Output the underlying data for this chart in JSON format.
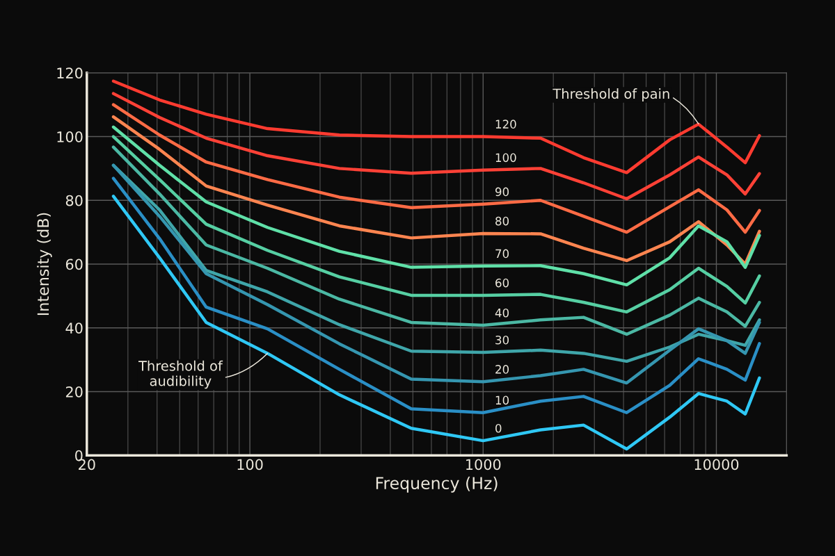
{
  "chart_data": {
    "type": "line",
    "xlabel": "Frequency (Hz)",
    "ylabel": "Intensity (dB)",
    "log": "x",
    "xlim": [
      20,
      20000
    ],
    "xticks": [
      20,
      100,
      1000,
      10000
    ],
    "ylim": [
      0,
      120
    ],
    "yticks": [
      0,
      20,
      40,
      60,
      80,
      100,
      120
    ],
    "grid": true,
    "legend": false,
    "marker": "none",
    "line_style": "solid",
    "x": [
      26,
      41,
      65,
      119,
      242,
      492,
      1000,
      1763,
      2695,
      4126,
      6315,
      8384,
      11100,
      13300,
      15300
    ],
    "series": [
      {
        "name": "120",
        "color": "#ff3b30",
        "values": [
          117.4,
          111.5,
          107,
          102.5,
          100.5,
          100,
          100,
          99.5,
          93.4,
          88.7,
          99,
          103.9,
          96.7,
          91.8,
          100.3
        ]
      },
      {
        "name": "100",
        "color": "#ff4136",
        "values": [
          113.5,
          106,
          99.5,
          94,
          90,
          88.5,
          89.5,
          90,
          85.5,
          80.5,
          88,
          93.6,
          88,
          82,
          88.4
        ]
      },
      {
        "name": "90",
        "color": "#ff6b45",
        "values": [
          110,
          100.5,
          92,
          86.5,
          81,
          77.7,
          78.8,
          80,
          75,
          70,
          78,
          83.3,
          77,
          70,
          76.8
        ]
      },
      {
        "name": "80",
        "color": "#ff8550",
        "values": [
          106.2,
          96,
          84.5,
          78.5,
          72,
          68.2,
          69.6,
          69.5,
          65,
          61.1,
          67,
          73.3,
          66,
          60,
          70.3
        ]
      },
      {
        "name": "70",
        "color": "#5fe0a8",
        "values": [
          103,
          91,
          79.5,
          71.5,
          64,
          59,
          59.4,
          59.5,
          57,
          53.5,
          62,
          72,
          67,
          59,
          69
        ]
      },
      {
        "name": "60",
        "color": "#56cfa3",
        "values": [
          100,
          86.5,
          72.5,
          64.3,
          56,
          50.2,
          50.2,
          50.5,
          48,
          45,
          52,
          58.7,
          53,
          47.8,
          56.3
        ]
      },
      {
        "name": "40",
        "color": "#4bb8a4",
        "values": [
          96.7,
          82,
          66,
          58.7,
          49,
          41.7,
          40.8,
          42.5,
          43.3,
          38,
          44,
          49.3,
          45,
          40.5,
          48
        ]
      },
      {
        "name": "30",
        "color": "#3fa6aa",
        "values": [
          91,
          77,
          58,
          51.3,
          41,
          32.7,
          32.3,
          33,
          32,
          29.5,
          34,
          38,
          36,
          34.5,
          42.5
        ]
      },
      {
        "name": "20",
        "color": "#3596b0",
        "values": [
          91,
          75,
          57,
          47.3,
          35,
          23.9,
          23.1,
          25,
          27,
          22.7,
          33,
          39.7,
          36,
          32,
          41.7
        ]
      },
      {
        "name": "10",
        "color": "#2a8fc6",
        "values": [
          86.9,
          68,
          46.5,
          39.7,
          27,
          14.6,
          13.4,
          17,
          18.5,
          13.4,
          22,
          30.3,
          27,
          23.6,
          35.1
        ]
      },
      {
        "name": "0",
        "color": "#2fc8f5",
        "values": [
          81.3,
          62,
          41.7,
          32,
          19,
          8.5,
          4.6,
          8,
          9.5,
          2,
          12,
          19.4,
          17,
          13,
          24.3
        ]
      }
    ],
    "annotations": [
      {
        "text": "Threshold of pain",
        "x": 8384,
        "y": 104
      },
      {
        "text": "Threshold of\naudibility",
        "x": 119,
        "y": 32
      }
    ]
  }
}
